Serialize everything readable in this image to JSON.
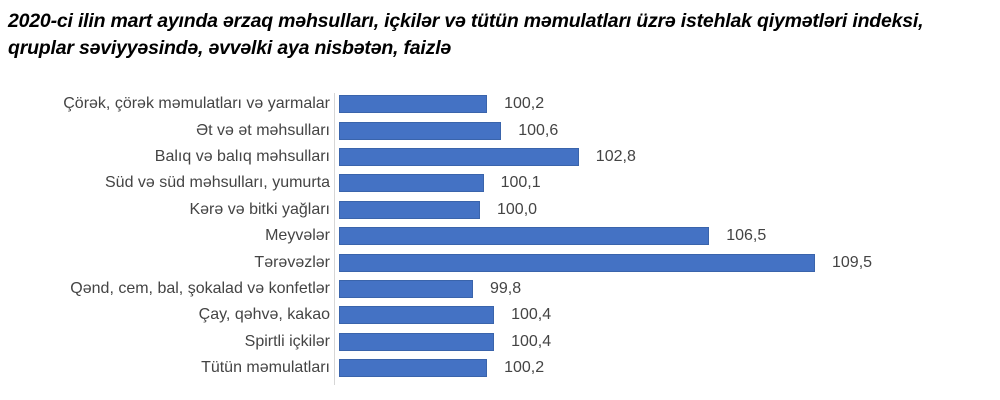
{
  "title": "2020-ci ilin mart ayında ərzaq məhsulları, içkilər və tütün məmulatları üzrə istehlak qiymətləri indeksi, qruplar səviyyəsində, əvvəlki aya nisbətən, faizlə",
  "title_lines": [
    "2020-ci ilin mart ayında ərzaq məhsulları, içkilər və tütün məmulatları üzrə istehlak qiymətləri indeksi,",
    "qruplar səviyyəsində, əvvəlki aya nisbətən, faizlə"
  ],
  "chart_data": {
    "type": "bar",
    "orientation": "horizontal",
    "title": "2020-ci ilin mart ayında ərzaq məhsulları, içkilər və tütün məmulatları üzrə istehlak qiymətləri indeksi, qruplar səviyyəsində, əvvəlki aya nisbətən, faizlə",
    "categories": [
      "Çörək, çörək məmulatları  və yarmalar",
      "Ət və ət məhsulları",
      "Balıq və balıq məhsulları",
      "Süd və süd məhsulları, yumurta",
      "Kərə və bitki yağları",
      "Meyvələr",
      "Tərəvəzlər",
      "Qənd, cem, bal, şokalad və konfetlər",
      "Çay, qəhvə, kakao",
      "Spirtli içkilər",
      "Tütün məmulatları"
    ],
    "values": [
      100.2,
      100.6,
      102.8,
      100.1,
      100.0,
      106.5,
      109.5,
      99.8,
      100.4,
      100.4,
      100.2
    ],
    "value_labels": [
      "100,2",
      "100,6",
      "102,8",
      "100,1",
      "100,0",
      "106,5",
      "109,5",
      "99,8",
      "100,4",
      "100,4",
      "100,2"
    ],
    "xlabel": "",
    "ylabel": "",
    "axis_min": 96,
    "grid": false,
    "legend": false,
    "bar_color": "#4472c4",
    "data_label_position": "outside-end",
    "decimal_separator": ","
  }
}
